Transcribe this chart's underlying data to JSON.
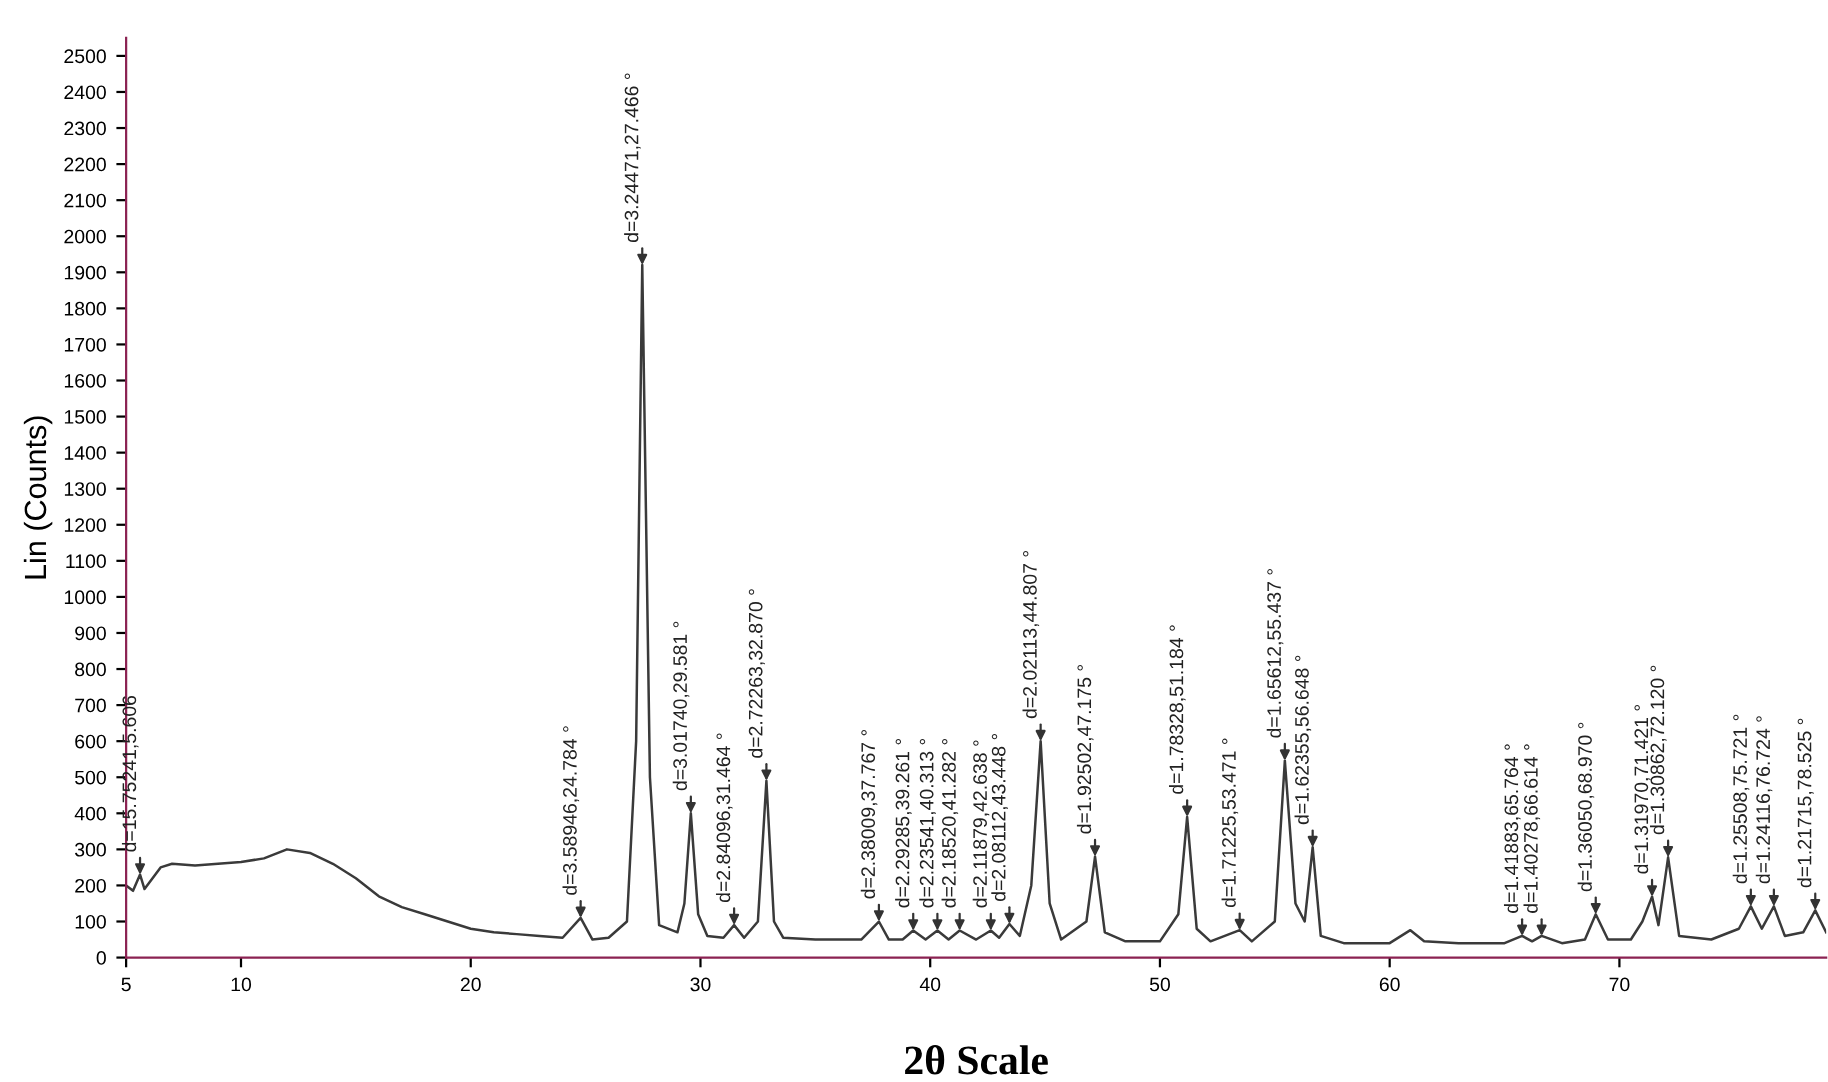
{
  "chart_data": {
    "type": "line",
    "xlabel": "2θ Scale",
    "ylabel": "Lin (Counts)",
    "xlim": [
      5,
      79
    ],
    "ylim": [
      0,
      2550
    ],
    "xticks": [
      5,
      10,
      20,
      30,
      40,
      50,
      60,
      70
    ],
    "yticks": [
      0,
      100,
      200,
      300,
      400,
      500,
      600,
      700,
      800,
      900,
      1000,
      1100,
      1200,
      1300,
      1400,
      1500,
      1600,
      1700,
      1800,
      1900,
      2000,
      2100,
      2200,
      2300,
      2400,
      2500
    ],
    "grid": false,
    "legend": false,
    "marker": "none",
    "line_style": "solid",
    "series": [
      {
        "color": "#3a3a3a",
        "x": [
          5,
          5.3,
          5.606,
          5.8,
          6.5,
          7,
          8,
          9,
          10,
          11,
          12,
          13,
          14,
          15,
          16,
          17,
          18,
          19,
          20,
          21,
          22,
          23,
          24,
          24.784,
          25.3,
          26,
          26.8,
          27.2,
          27.466,
          27.8,
          28.2,
          29,
          29.3,
          29.581,
          29.9,
          30.3,
          31,
          31.464,
          31.9,
          32.5,
          32.87,
          33.2,
          33.6,
          35,
          37,
          37.767,
          38.2,
          38.8,
          39.261,
          39.8,
          40.313,
          40.8,
          41.282,
          42,
          42.638,
          43,
          43.448,
          43.9,
          44.4,
          44.807,
          45.2,
          45.7,
          46.8,
          47.175,
          47.6,
          48.5,
          50,
          50.8,
          51.184,
          51.6,
          52.2,
          53.471,
          54,
          55,
          55.437,
          55.9,
          56.3,
          56.648,
          57,
          58,
          60,
          60.9,
          61.5,
          63,
          65,
          65.764,
          66.2,
          66.614,
          67.5,
          68.5,
          68.97,
          69.5,
          70.5,
          71,
          71.421,
          71.7,
          72.12,
          72.6,
          74,
          75.2,
          75.721,
          76.2,
          76.724,
          77.2,
          78,
          78.525,
          79
        ],
        "values": [
          200,
          185,
          230,
          190,
          250,
          260,
          255,
          260,
          265,
          275,
          300,
          290,
          260,
          220,
          170,
          140,
          120,
          100,
          80,
          70,
          65,
          60,
          55,
          110,
          50,
          55,
          100,
          600,
          1920,
          500,
          90,
          70,
          150,
          400,
          120,
          60,
          55,
          90,
          55,
          100,
          490,
          100,
          55,
          50,
          50,
          100,
          50,
          50,
          75,
          50,
          75,
          50,
          75,
          50,
          75,
          55,
          93,
          60,
          200,
          600,
          150,
          50,
          100,
          280,
          70,
          45,
          45,
          120,
          390,
          80,
          45,
          76,
          45,
          100,
          546,
          150,
          100,
          306,
          60,
          40,
          40,
          76,
          45,
          40,
          40,
          60,
          45,
          60,
          40,
          50,
          120,
          50,
          50,
          100,
          169,
          90,
          278,
          60,
          50,
          80,
          142,
          80,
          142,
          60,
          70,
          131,
          70
        ]
      }
    ],
    "annotations": [
      {
        "text": "d=15.75241,5.606",
        "x": 5.606,
        "y": 230
      },
      {
        "text": "d=3.58946,24.784 °",
        "x": 24.784,
        "y": 110
      },
      {
        "text": "d=3.24471,27.466 °",
        "x": 27.466,
        "y": 1920
      },
      {
        "text": "d=3.01740,29.581 °",
        "x": 29.581,
        "y": 400
      },
      {
        "text": "d=2.84096,31.464 °",
        "x": 31.464,
        "y": 90
      },
      {
        "text": "d=2.72263,32.870 °",
        "x": 32.87,
        "y": 490
      },
      {
        "text": "d=2.38009,37.767 °",
        "x": 37.767,
        "y": 100
      },
      {
        "text": "d=2.29285,39.261 °",
        "x": 39.261,
        "y": 75
      },
      {
        "text": "d=2.23541,40.313 °",
        "x": 40.313,
        "y": 75
      },
      {
        "text": "d=2.18520,41.282 °",
        "x": 41.282,
        "y": 75
      },
      {
        "text": "d=2.11879,42.638 °",
        "x": 42.638,
        "y": 75
      },
      {
        "text": "d=2.08112,43.448 °",
        "x": 43.448,
        "y": 93
      },
      {
        "text": "d=2.02113,44.807 °",
        "x": 44.807,
        "y": 600
      },
      {
        "text": "d=1.92502,47.175 °",
        "x": 47.175,
        "y": 280
      },
      {
        "text": "d=1.78328,51.184 °",
        "x": 51.184,
        "y": 390
      },
      {
        "text": "d=1.71225,53.471 °",
        "x": 53.471,
        "y": 76
      },
      {
        "text": "d=1.65612,55.437 °",
        "x": 55.437,
        "y": 546
      },
      {
        "text": "d=1.62355,56.648 °",
        "x": 56.648,
        "y": 306
      },
      {
        "text": "d=1.41883,65.764 °",
        "x": 65.764,
        "y": 60
      },
      {
        "text": "d=1.40278,66.614 °",
        "x": 66.614,
        "y": 60
      },
      {
        "text": "d=1.36050,68.970 °",
        "x": 68.97,
        "y": 120
      },
      {
        "text": "d=1.31970,71.421 °",
        "x": 71.421,
        "y": 169
      },
      {
        "text": "d=1.30862,72.120 °",
        "x": 72.12,
        "y": 278
      },
      {
        "text": "d=1.25508,75.721 °",
        "x": 75.721,
        "y": 142
      },
      {
        "text": "d=1.24116,76.724 °",
        "x": 76.724,
        "y": 142
      },
      {
        "text": "d=1.21715,78.525 °",
        "x": 78.525,
        "y": 131
      }
    ]
  }
}
